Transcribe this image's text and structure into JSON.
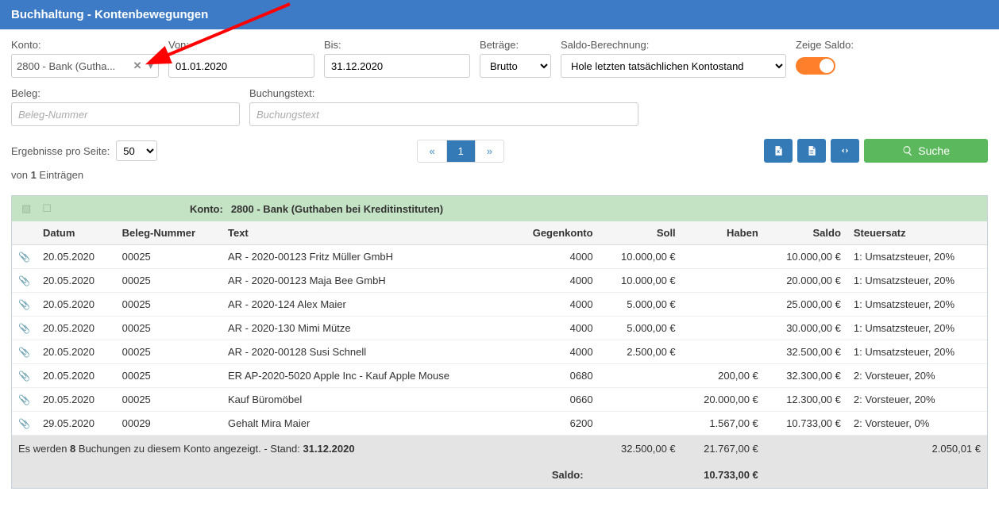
{
  "header": {
    "title": "Buchhaltung - Kontenbewegungen"
  },
  "filters": {
    "konto_label": "Konto:",
    "konto_value": "2800 - Bank (Gutha...",
    "von_label": "Von:",
    "von_value": "01.01.2020",
    "bis_label": "Bis:",
    "bis_value": "31.12.2020",
    "betraege_label": "Beträge:",
    "betraege_value": "Brutto",
    "saldo_berechnung_label": "Saldo-Berechnung:",
    "saldo_berechnung_value": "Hole letzten tatsächlichen Kontostand",
    "zeige_saldo_label": "Zeige Saldo:",
    "zeige_saldo_on": true,
    "beleg_label": "Beleg:",
    "beleg_placeholder": "Beleg-Nummer",
    "buchungstext_label": "Buchungstext:",
    "buchungstext_placeholder": "Buchungstext"
  },
  "results": {
    "per_page_label": "Ergebnisse pro Seite:",
    "per_page_value": "50",
    "entries_prefix": "von ",
    "entries_count": "1",
    "entries_suffix": " Einträgen",
    "pager_prev": "«",
    "pager_current": "1",
    "pager_next": "»",
    "search_label": "Suche"
  },
  "table": {
    "konto_header_label": "Konto:",
    "konto_header_value": "2800 - Bank (Guthaben bei Kreditinstituten)",
    "columns": [
      "",
      "Datum",
      "Beleg-Nummer",
      "Text",
      "Gegenkonto",
      "Soll",
      "Haben",
      "Saldo",
      "Steuersatz"
    ],
    "rows": [
      {
        "datum": "20.05.2020",
        "beleg": "00025",
        "text": "AR - 2020-00123 Fritz Müller GmbH",
        "gegenkonto": "4000",
        "soll": "10.000,00 €",
        "haben": "",
        "saldo": "10.000,00 €",
        "steuer": "1: Umsatzsteuer, 20%"
      },
      {
        "datum": "20.05.2020",
        "beleg": "00025",
        "text": "AR - 2020-00123 Maja Bee GmbH",
        "gegenkonto": "4000",
        "soll": "10.000,00 €",
        "haben": "",
        "saldo": "20.000,00 €",
        "steuer": "1: Umsatzsteuer, 20%"
      },
      {
        "datum": "20.05.2020",
        "beleg": "00025",
        "text": "AR - 2020-124 Alex Maier",
        "gegenkonto": "4000",
        "soll": "5.000,00 €",
        "haben": "",
        "saldo": "25.000,00 €",
        "steuer": "1: Umsatzsteuer, 20%"
      },
      {
        "datum": "20.05.2020",
        "beleg": "00025",
        "text": "AR - 2020-130 Mimi Mütze",
        "gegenkonto": "4000",
        "soll": "5.000,00 €",
        "haben": "",
        "saldo": "30.000,00 €",
        "steuer": "1: Umsatzsteuer, 20%"
      },
      {
        "datum": "20.05.2020",
        "beleg": "00025",
        "text": "AR - 2020-00128 Susi Schnell",
        "gegenkonto": "4000",
        "soll": "2.500,00 €",
        "haben": "",
        "saldo": "32.500,00 €",
        "steuer": "1: Umsatzsteuer, 20%"
      },
      {
        "datum": "20.05.2020",
        "beleg": "00025",
        "text": "ER AP-2020-5020 Apple Inc - Kauf Apple Mouse",
        "gegenkonto": "0680",
        "soll": "",
        "haben": "200,00 €",
        "saldo": "32.300,00 €",
        "steuer": "2: Vorsteuer, 20%"
      },
      {
        "datum": "20.05.2020",
        "beleg": "00025",
        "text": "Kauf Büromöbel",
        "gegenkonto": "0660",
        "soll": "",
        "haben": "20.000,00 €",
        "saldo": "12.300,00 €",
        "steuer": "2: Vorsteuer, 20%"
      },
      {
        "datum": "29.05.2020",
        "beleg": "00029",
        "text": "Gehalt Mira Maier",
        "gegenkonto": "6200",
        "soll": "",
        "haben": "1.567,00 €",
        "saldo": "10.733,00 €",
        "steuer": "2: Vorsteuer, 0%"
      }
    ],
    "summary_prefix": "Es werden ",
    "summary_count": "8",
    "summary_mid": " Buchungen zu diesem Konto angezeigt. - Stand: ",
    "summary_date": "31.12.2020",
    "sum_soll": "32.500,00 €",
    "sum_haben": "21.767,00 €",
    "sum_right": "2.050,01 €",
    "saldo_label": "Saldo:",
    "saldo_value": "10.733,00 €"
  },
  "colors": {
    "header_bg": "#3d7bc7",
    "green_header": "#c4e2c4",
    "btn_blue": "#337ab7",
    "btn_green": "#5cb85c",
    "toggle": "#ff7f2a",
    "arrow": "#ff0000"
  }
}
